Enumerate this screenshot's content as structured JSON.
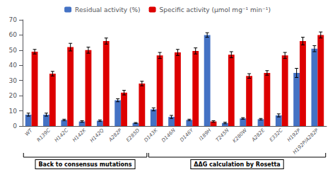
{
  "chart_data": {
    "type": "bar",
    "categories": [
      "WT",
      "R139C",
      "H142C",
      "H142K",
      "H142Q",
      "A282P",
      "E285D",
      "D143K",
      "D146N",
      "D146Y",
      "I189H",
      "T245N",
      "K280W",
      "A282E",
      "E332C",
      "H192P",
      "H192P/A282P"
    ],
    "series": [
      {
        "name": "Residual activity (%)",
        "color": "#4472C4",
        "values": [
          7.5,
          7.5,
          4.0,
          3.0,
          3.5,
          17.0,
          2.0,
          11.0,
          6.0,
          4.0,
          60.0,
          2.0,
          5.0,
          4.5,
          7.0,
          35.0,
          51.0
        ],
        "errors": [
          1.0,
          1.0,
          0.5,
          0.5,
          0.5,
          1.0,
          0.3,
          1.0,
          1.0,
          0.5,
          1.5,
          0.5,
          0.5,
          0.5,
          1.0,
          3.0,
          2.0
        ]
      },
      {
        "name": "Specific activity (μmol mg⁻¹ min⁻¹)",
        "color": "#DD0000",
        "values": [
          49.0,
          34.5,
          52.0,
          50.0,
          56.0,
          22.0,
          28.0,
          46.5,
          48.5,
          49.5,
          3.0,
          47.0,
          33.0,
          35.0,
          46.5,
          56.0,
          60.0
        ],
        "errors": [
          1.5,
          1.5,
          2.5,
          2.0,
          2.0,
          1.5,
          1.5,
          2.0,
          2.0,
          2.0,
          0.5,
          2.0,
          1.5,
          1.5,
          2.0,
          2.5,
          2.0
        ]
      }
    ],
    "ylim": [
      0,
      70
    ],
    "yticks": [
      0,
      10,
      20,
      30,
      40,
      50,
      60,
      70
    ],
    "grid": false,
    "legend": "top",
    "annotations": [
      {
        "text": "Back to consensus mutations",
        "from": "WT",
        "to": "E285D"
      },
      {
        "text": "ΔΔG calculation by Rosetta",
        "from": "D143K",
        "to": "H192P/A282P"
      }
    ]
  }
}
